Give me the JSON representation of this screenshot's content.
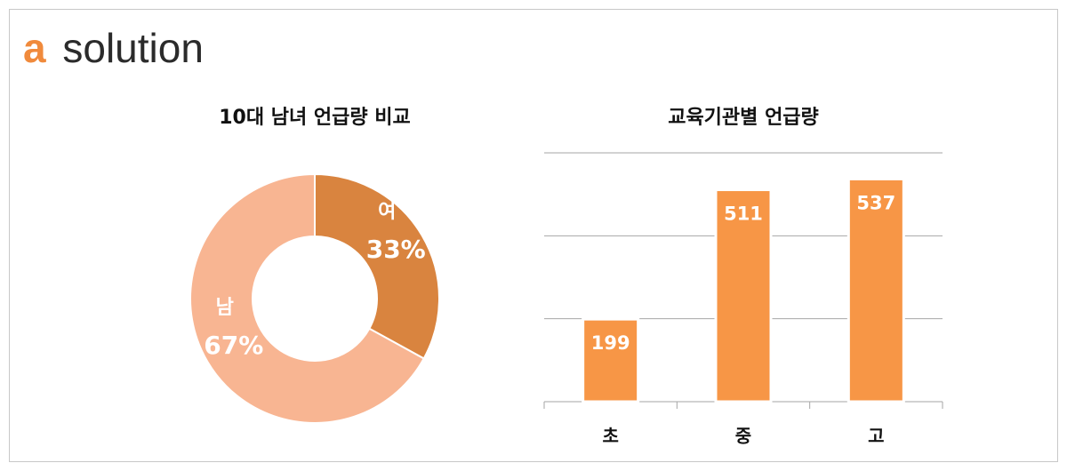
{
  "logo": {
    "mark": "a",
    "text": "solution"
  },
  "chart_data": [
    {
      "type": "donut",
      "title": "10대 남녀 언급량 비교",
      "categories": [
        "여",
        "남"
      ],
      "values": [
        33,
        67
      ],
      "value_labels": [
        "33%",
        "67%"
      ],
      "colors": [
        "#d9843f",
        "#f8b592"
      ]
    },
    {
      "type": "bar",
      "title": "교육기관별 언급량",
      "categories": [
        "초",
        "중",
        "고"
      ],
      "values": [
        199,
        511,
        537
      ],
      "color": "#f79646",
      "ylim": [
        0,
        600
      ],
      "yticks": [
        0,
        200,
        400,
        600
      ],
      "grid": true
    }
  ]
}
